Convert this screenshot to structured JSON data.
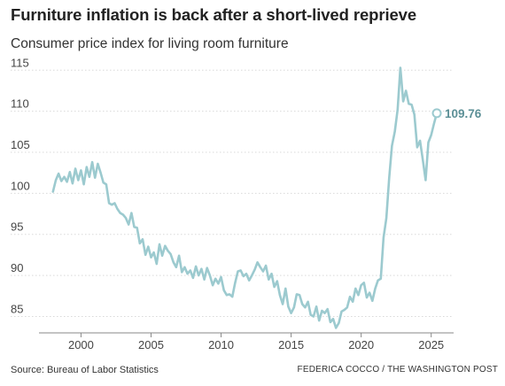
{
  "chart_data": {
    "type": "line",
    "title": "Furniture inflation is back after a short-lived reprieve",
    "subtitle": "Consumer price index for living room furniture",
    "xlabel": "",
    "ylabel": "",
    "xlim": [
      1997.0,
      2026.6
    ],
    "ylim": [
      83,
      116
    ],
    "y_ticks": [
      85,
      90,
      95,
      100,
      105,
      110,
      115
    ],
    "x_ticks": [
      2000,
      2005,
      2010,
      2015,
      2020,
      2025
    ],
    "grid": true,
    "legend": "none",
    "line_color": "#9ccacf",
    "end_value_label": "109.76",
    "series": [
      {
        "x": [
          1998.0,
          1998.2,
          1998.4,
          1998.6,
          1998.8,
          1999.0,
          1999.2,
          1999.4,
          1999.6,
          1999.8,
          2000.0,
          2000.2,
          2000.4,
          2000.6,
          2000.8,
          2001.0,
          2001.2,
          2001.4,
          2001.6,
          2001.8,
          2002.0,
          2002.2,
          2002.4,
          2002.6,
          2002.8,
          2003.0,
          2003.2,
          2003.4,
          2003.6,
          2003.8,
          2004.0,
          2004.2,
          2004.4,
          2004.6,
          2004.8,
          2005.0,
          2005.2,
          2005.4,
          2005.6,
          2005.8,
          2006.0,
          2006.2,
          2006.4,
          2006.6,
          2006.8,
          2007.0,
          2007.2,
          2007.4,
          2007.6,
          2007.8,
          2008.0,
          2008.2,
          2008.4,
          2008.6,
          2008.8,
          2009.0,
          2009.2,
          2009.4,
          2009.6,
          2009.8,
          2010.0,
          2010.2,
          2010.4,
          2010.6,
          2010.8,
          2011.0,
          2011.2,
          2011.4,
          2011.6,
          2011.8,
          2012.0,
          2012.2,
          2012.4,
          2012.6,
          2012.8,
          2013.0,
          2013.2,
          2013.4,
          2013.6,
          2013.8,
          2014.0,
          2014.2,
          2014.4,
          2014.6,
          2014.8,
          2015.0,
          2015.2,
          2015.4,
          2015.6,
          2015.8,
          2016.0,
          2016.2,
          2016.4,
          2016.6,
          2016.8,
          2017.0,
          2017.2,
          2017.4,
          2017.6,
          2017.8,
          2018.0,
          2018.2,
          2018.4,
          2018.6,
          2018.8,
          2019.0,
          2019.2,
          2019.4,
          2019.6,
          2019.8,
          2020.0,
          2020.2,
          2020.4,
          2020.6,
          2020.8,
          2021.0,
          2021.2,
          2021.4,
          2021.6,
          2021.8,
          2022.0,
          2022.2,
          2022.4,
          2022.6,
          2022.8,
          2023.0,
          2023.2,
          2023.4,
          2023.6,
          2023.8,
          2024.0,
          2024.2,
          2024.4,
          2024.6,
          2024.8,
          2025.0,
          2025.2,
          2025.4
        ],
        "values": [
          100.2,
          101.6,
          102.4,
          101.5,
          102.0,
          101.4,
          102.6,
          101.2,
          103.0,
          101.6,
          102.8,
          101.1,
          103.2,
          102.0,
          103.8,
          101.9,
          103.6,
          102.5,
          101.3,
          101.1,
          98.8,
          98.6,
          98.8,
          98.1,
          97.6,
          97.4,
          97.0,
          96.2,
          97.6,
          95.9,
          95.8,
          93.9,
          94.4,
          92.5,
          93.5,
          92.2,
          92.8,
          91.4,
          93.8,
          92.4,
          93.6,
          93.0,
          92.6,
          91.6,
          91.0,
          92.4,
          90.4,
          91.0,
          90.2,
          90.6,
          89.7,
          91.1,
          90.0,
          90.8,
          89.5,
          90.9,
          90.0,
          88.8,
          89.6,
          89.0,
          89.8,
          88.2,
          87.6,
          87.7,
          87.4,
          89.1,
          90.5,
          90.6,
          89.9,
          90.2,
          89.4,
          90.0,
          90.7,
          91.6,
          91.0,
          90.5,
          91.2,
          89.5,
          90.2,
          88.6,
          89.3,
          87.6,
          86.5,
          88.4,
          86.2,
          85.4,
          86.1,
          87.7,
          87.6,
          86.5,
          86.1,
          86.8,
          85.2,
          85.0,
          86.2,
          84.5,
          85.7,
          85.4,
          85.9,
          84.3,
          84.7,
          83.6,
          84.2,
          85.6,
          85.8,
          86.1,
          87.4,
          86.8,
          88.4,
          87.6,
          88.8,
          89.1,
          87.3,
          87.9,
          86.9,
          88.4,
          89.4,
          89.6,
          94.6,
          97.0,
          101.9,
          105.8,
          107.5,
          110.2,
          115.3,
          111.2,
          112.5,
          110.9,
          110.8,
          109.6,
          105.6,
          106.4,
          104.1,
          101.6,
          106.2,
          107.1,
          108.5,
          109.76
        ]
      }
    ]
  },
  "source_text": "Source: Bureau of Labor Statistics",
  "credit_text": "FEDERICA COCCO / THE WASHINGTON POST"
}
